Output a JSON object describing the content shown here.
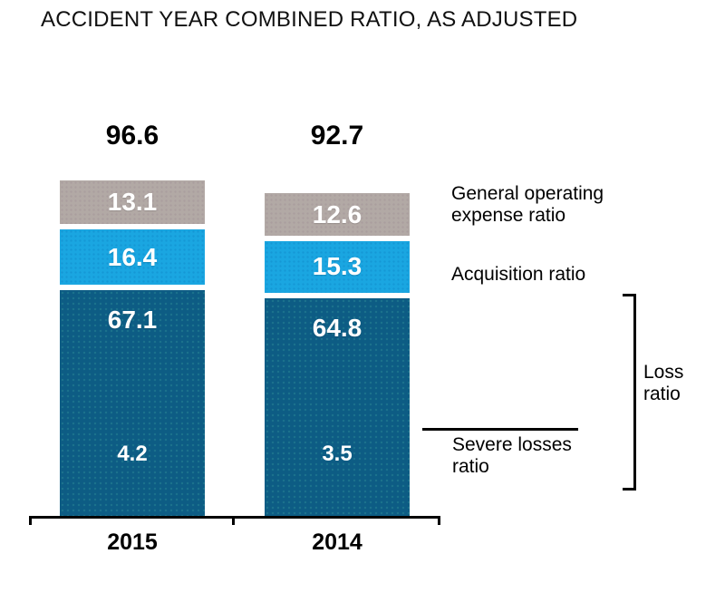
{
  "title": "ACCIDENT YEAR COMBINED RATIO, AS ADJUSTED",
  "chart_data": {
    "type": "bar",
    "stacked": true,
    "orientation": "vertical",
    "categories": [
      "2015",
      "2014"
    ],
    "totals": [
      96.6,
      92.7
    ],
    "series": [
      {
        "name": "General operating expense ratio",
        "key": "goe",
        "color": "#b2a9a5",
        "values": [
          13.1,
          12.6
        ]
      },
      {
        "name": "Acquisition ratio",
        "key": "acq",
        "color": "#1aa6e1",
        "values": [
          16.4,
          15.3
        ]
      },
      {
        "name": "Loss ratio",
        "key": "loss",
        "color": "#0d5c84",
        "values": [
          67.1,
          64.8
        ]
      }
    ],
    "sub_series": {
      "name": "Severe losses ratio",
      "parent": "Loss ratio",
      "values": [
        4.2,
        3.5
      ]
    },
    "value_labels_inside_bars": true,
    "value_label_color": "#ffffff",
    "legend_position": "right",
    "grid": false,
    "y_axis_visible": false,
    "x_baseline_visible": true,
    "ylim": [
      0,
      100
    ]
  },
  "annotations": {
    "general_operating_expense": {
      "label": "General operating expense ratio"
    },
    "acquisition": {
      "label": "Acquisition ratio"
    },
    "loss": {
      "label": "Loss ratio"
    },
    "severe_losses": {
      "label": "Severe losses ratio"
    }
  }
}
